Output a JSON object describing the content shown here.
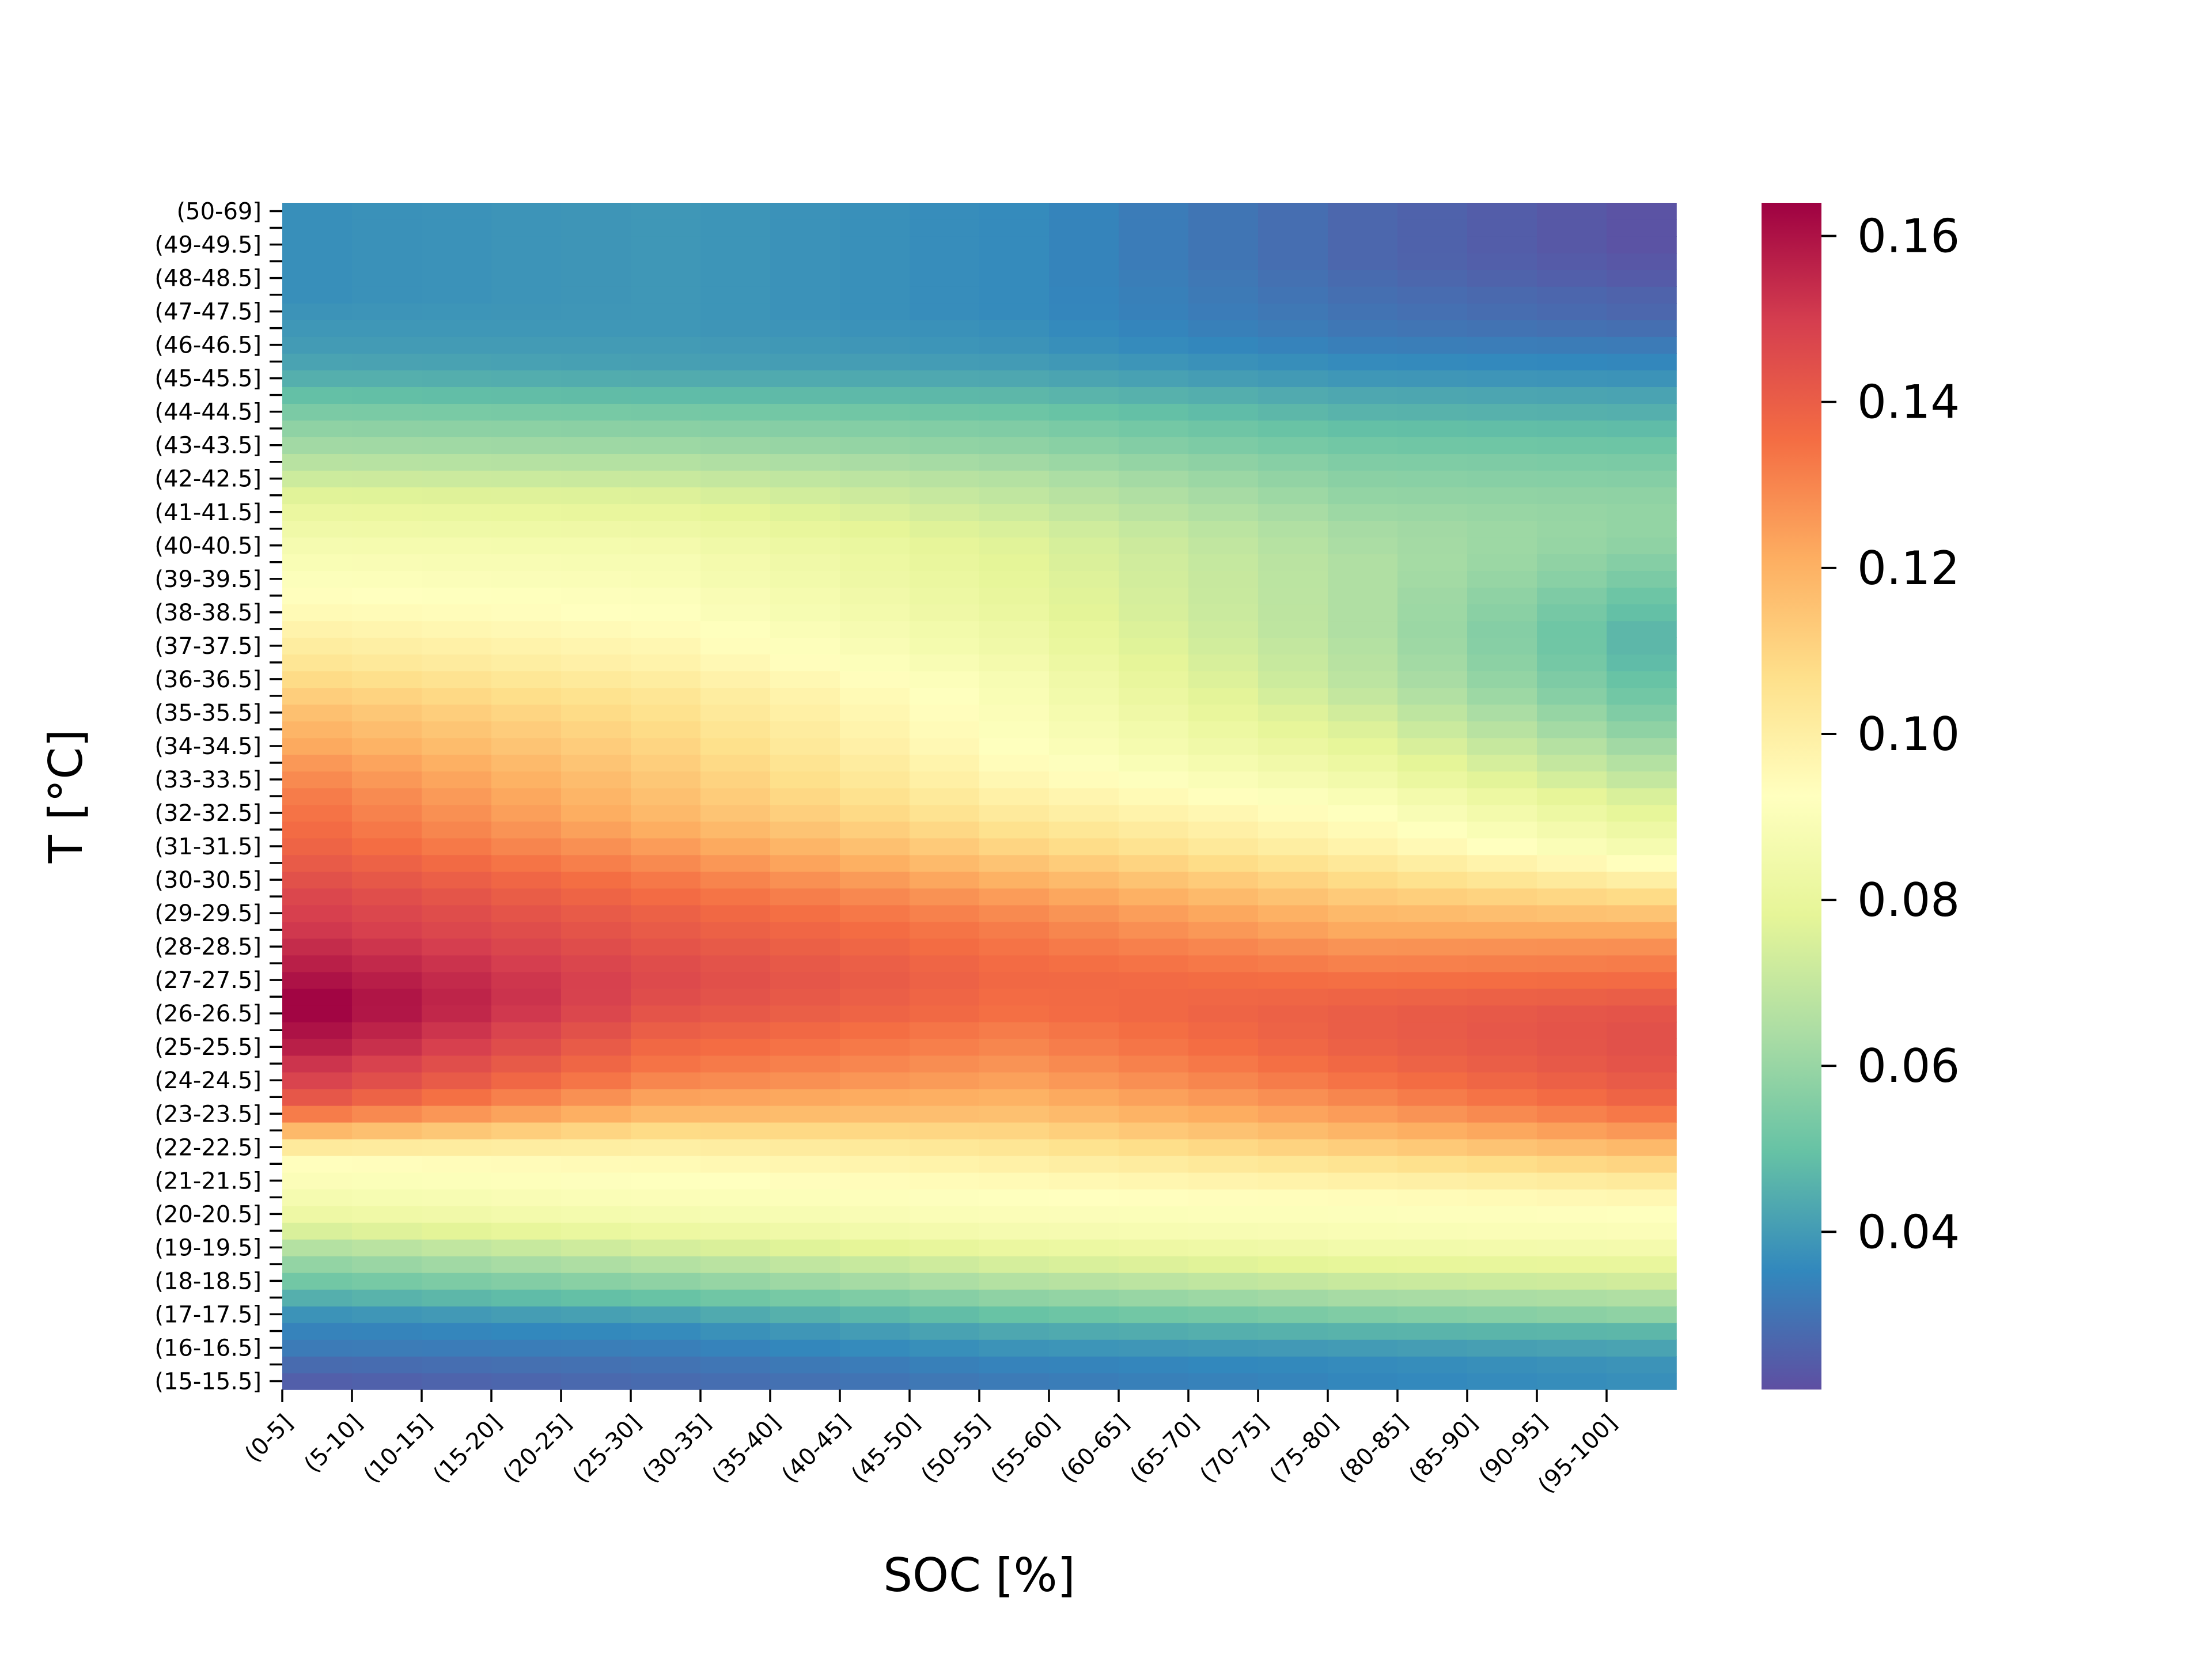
{
  "chart_data": {
    "type": "heatmap",
    "title": "",
    "xlabel": "SOC [%]",
    "ylabel": "T [°C]",
    "colormap": "Spectral_r",
    "colorbar": {
      "vmin": 0.021,
      "vmax": 0.164,
      "ticks": [
        "0.04",
        "0.06",
        "0.08",
        "0.10",
        "0.12",
        "0.14",
        "0.16"
      ],
      "tick_values": [
        0.04,
        0.06,
        0.08,
        0.1,
        0.12,
        0.14,
        0.16
      ]
    },
    "x_categories": [
      "(0-5]",
      "(5-10]",
      "(10-15]",
      "(15-20]",
      "(20-25]",
      "(25-30]",
      "(30-35]",
      "(35-40]",
      "(40-45]",
      "(45-50]",
      "(50-55]",
      "(55-60]",
      "(60-65]",
      "(65-70]",
      "(70-75]",
      "(75-80]",
      "(80-85]",
      "(85-90]",
      "(90-95]",
      "(95-100]"
    ],
    "y_tick_labels": [
      "(50-69]",
      "(49-49.5]",
      "(48-48.5]",
      "(47-47.5]",
      "(46-46.5]",
      "(45-45.5]",
      "(44-44.5]",
      "(43-43.5]",
      "(42-42.5]",
      "(41-41.5]",
      "(40-40.5]",
      "(39-39.5]",
      "(38-38.5]",
      "(37-37.5]",
      "(36-36.5]",
      "(35-35.5]",
      "(34-34.5]",
      "(33-33.5]",
      "(32-32.5]",
      "(31-31.5]",
      "(30-30.5]",
      "(29-29.5]",
      "(28-28.5]",
      "(27-27.5]",
      "(26-26.5]",
      "(25-25.5]",
      "(24-24.5]",
      "(23-23.5]",
      "(22-22.5]",
      "(21-21.5]",
      "(20-20.5]",
      "(19-19.5]",
      "(18-18.5]",
      "(17-17.5]",
      "(16-16.5]",
      "(15-15.5]"
    ],
    "y_row_count": 71,
    "grid": false,
    "legend": "colorbar-right",
    "profile_soc_anchors": [
      0,
      5,
      10,
      15,
      19
    ],
    "profile_rows": [
      {
        "T": 15.0,
        "v": [
          0.025,
          0.028,
          0.032,
          0.035,
          0.037
        ]
      },
      {
        "T": 15.5,
        "v": [
          0.028,
          0.03,
          0.034,
          0.036,
          0.038
        ]
      },
      {
        "T": 16.0,
        "v": [
          0.032,
          0.033,
          0.038,
          0.04,
          0.042
        ]
      },
      {
        "T": 16.5,
        "v": [
          0.034,
          0.036,
          0.043,
          0.046,
          0.047
        ]
      },
      {
        "T": 17.0,
        "v": [
          0.038,
          0.042,
          0.05,
          0.055,
          0.058
        ]
      },
      {
        "T": 17.5,
        "v": [
          0.045,
          0.05,
          0.058,
          0.063,
          0.065
        ]
      },
      {
        "T": 18.0,
        "v": [
          0.052,
          0.058,
          0.066,
          0.071,
          0.073
        ]
      },
      {
        "T": 18.5,
        "v": [
          0.059,
          0.066,
          0.074,
          0.079,
          0.08
        ]
      },
      {
        "T": 19.0,
        "v": [
          0.066,
          0.074,
          0.081,
          0.085,
          0.086
        ]
      },
      {
        "T": 19.5,
        "v": [
          0.075,
          0.082,
          0.087,
          0.089,
          0.09
        ]
      },
      {
        "T": 20.0,
        "v": [
          0.083,
          0.087,
          0.09,
          0.091,
          0.092
        ]
      },
      {
        "T": 20.5,
        "v": [
          0.087,
          0.09,
          0.092,
          0.094,
          0.096
        ]
      },
      {
        "T": 21.0,
        "v": [
          0.09,
          0.092,
          0.095,
          0.099,
          0.102
        ]
      },
      {
        "T": 21.5,
        "v": [
          0.093,
          0.095,
          0.099,
          0.105,
          0.11
        ]
      },
      {
        "T": 22.0,
        "v": [
          0.102,
          0.1,
          0.104,
          0.112,
          0.118
        ]
      },
      {
        "T": 22.5,
        "v": [
          0.118,
          0.108,
          0.11,
          0.119,
          0.126
        ]
      },
      {
        "T": 23.0,
        "v": [
          0.132,
          0.118,
          0.116,
          0.125,
          0.133
        ]
      },
      {
        "T": 23.5,
        "v": [
          0.142,
          0.124,
          0.12,
          0.13,
          0.138
        ]
      },
      {
        "T": 24.0,
        "v": [
          0.148,
          0.13,
          0.124,
          0.134,
          0.141
        ]
      },
      {
        "T": 24.5,
        "v": [
          0.152,
          0.134,
          0.127,
          0.137,
          0.143
        ]
      },
      {
        "T": 25.0,
        "v": [
          0.157,
          0.137,
          0.13,
          0.139,
          0.144
        ]
      },
      {
        "T": 25.5,
        "v": [
          0.16,
          0.14,
          0.132,
          0.14,
          0.144
        ]
      },
      {
        "T": 26.0,
        "v": [
          0.163,
          0.143,
          0.135,
          0.14,
          0.143
        ]
      },
      {
        "T": 26.5,
        "v": [
          0.163,
          0.145,
          0.136,
          0.138,
          0.14
        ]
      },
      {
        "T": 27.0,
        "v": [
          0.16,
          0.146,
          0.137,
          0.135,
          0.136
        ]
      },
      {
        "T": 27.5,
        "v": [
          0.157,
          0.145,
          0.136,
          0.131,
          0.132
        ]
      },
      {
        "T": 28.0,
        "v": [
          0.154,
          0.143,
          0.134,
          0.127,
          0.128
        ]
      },
      {
        "T": 28.5,
        "v": [
          0.151,
          0.141,
          0.132,
          0.122,
          0.122
        ]
      },
      {
        "T": 29.0,
        "v": [
          0.149,
          0.139,
          0.129,
          0.118,
          0.115
        ]
      },
      {
        "T": 29.5,
        "v": [
          0.147,
          0.136,
          0.125,
          0.113,
          0.108
        ]
      },
      {
        "T": 30.0,
        "v": [
          0.144,
          0.133,
          0.12,
          0.108,
          0.1
        ]
      },
      {
        "T": 30.5,
        "v": [
          0.141,
          0.129,
          0.115,
          0.103,
          0.093
        ]
      },
      {
        "T": 31.0,
        "v": [
          0.138,
          0.125,
          0.11,
          0.098,
          0.087
        ]
      },
      {
        "T": 31.5,
        "v": [
          0.136,
          0.121,
          0.106,
          0.095,
          0.083
        ]
      },
      {
        "T": 32.0,
        "v": [
          0.134,
          0.118,
          0.102,
          0.092,
          0.079
        ]
      },
      {
        "T": 32.5,
        "v": [
          0.132,
          0.116,
          0.099,
          0.089,
          0.075
        ]
      },
      {
        "T": 33.0,
        "v": [
          0.129,
          0.114,
          0.096,
          0.085,
          0.07
        ]
      },
      {
        "T": 33.5,
        "v": [
          0.126,
          0.112,
          0.094,
          0.082,
          0.066
        ]
      },
      {
        "T": 34.0,
        "v": [
          0.122,
          0.11,
          0.092,
          0.079,
          0.062
        ]
      },
      {
        "T": 34.5,
        "v": [
          0.119,
          0.108,
          0.091,
          0.076,
          0.058
        ]
      },
      {
        "T": 35.0,
        "v": [
          0.116,
          0.106,
          0.09,
          0.073,
          0.055
        ]
      },
      {
        "T": 35.5,
        "v": [
          0.112,
          0.104,
          0.089,
          0.07,
          0.052
        ]
      },
      {
        "T": 36.0,
        "v": [
          0.108,
          0.101,
          0.088,
          0.068,
          0.05
        ]
      },
      {
        "T": 36.5,
        "v": [
          0.104,
          0.098,
          0.086,
          0.067,
          0.048
        ]
      },
      {
        "T": 37.0,
        "v": [
          0.101,
          0.096,
          0.084,
          0.066,
          0.047
        ]
      },
      {
        "T": 37.5,
        "v": [
          0.098,
          0.094,
          0.083,
          0.065,
          0.047
        ]
      },
      {
        "T": 38.0,
        "v": [
          0.095,
          0.092,
          0.081,
          0.065,
          0.049
        ]
      },
      {
        "T": 38.5,
        "v": [
          0.093,
          0.091,
          0.08,
          0.065,
          0.051
        ]
      },
      {
        "T": 39.0,
        "v": [
          0.091,
          0.089,
          0.079,
          0.065,
          0.054
        ]
      },
      {
        "T": 39.5,
        "v": [
          0.089,
          0.088,
          0.078,
          0.065,
          0.056
        ]
      },
      {
        "T": 40.0,
        "v": [
          0.087,
          0.086,
          0.077,
          0.064,
          0.058
        ]
      },
      {
        "T": 40.5,
        "v": [
          0.084,
          0.083,
          0.075,
          0.063,
          0.059
        ]
      },
      {
        "T": 41.0,
        "v": [
          0.081,
          0.08,
          0.072,
          0.061,
          0.059
        ]
      },
      {
        "T": 41.5,
        "v": [
          0.077,
          0.076,
          0.069,
          0.059,
          0.058
        ]
      },
      {
        "T": 42.0,
        "v": [
          0.072,
          0.071,
          0.066,
          0.057,
          0.056
        ]
      },
      {
        "T": 42.5,
        "v": [
          0.067,
          0.066,
          0.062,
          0.055,
          0.054
        ]
      },
      {
        "T": 43.0,
        "v": [
          0.062,
          0.061,
          0.058,
          0.052,
          0.051
        ]
      },
      {
        "T": 43.5,
        "v": [
          0.058,
          0.057,
          0.055,
          0.049,
          0.048
        ]
      },
      {
        "T": 44.0,
        "v": [
          0.054,
          0.053,
          0.051,
          0.046,
          0.045
        ]
      },
      {
        "T": 44.5,
        "v": [
          0.049,
          0.048,
          0.047,
          0.043,
          0.042
        ]
      },
      {
        "T": 45.0,
        "v": [
          0.045,
          0.044,
          0.043,
          0.039,
          0.038
        ]
      },
      {
        "T": 45.5,
        "v": [
          0.042,
          0.041,
          0.04,
          0.036,
          0.035
        ]
      },
      {
        "T": 46.0,
        "v": [
          0.04,
          0.04,
          0.038,
          0.033,
          0.032
        ]
      },
      {
        "T": 46.5,
        "v": [
          0.039,
          0.039,
          0.037,
          0.031,
          0.029
        ]
      },
      {
        "T": 47.0,
        "v": [
          0.038,
          0.039,
          0.036,
          0.03,
          0.027
        ]
      },
      {
        "T": 47.5,
        "v": [
          0.037,
          0.039,
          0.036,
          0.029,
          0.026
        ]
      },
      {
        "T": 48.0,
        "v": [
          0.037,
          0.039,
          0.036,
          0.028,
          0.024
        ]
      },
      {
        "T": 48.5,
        "v": [
          0.037,
          0.039,
          0.036,
          0.027,
          0.023
        ]
      },
      {
        "T": 49.0,
        "v": [
          0.037,
          0.039,
          0.036,
          0.027,
          0.022
        ]
      },
      {
        "T": 49.5,
        "v": [
          0.037,
          0.039,
          0.036,
          0.027,
          0.022
        ]
      },
      {
        "T": 50.0,
        "v": [
          0.037,
          0.039,
          0.036,
          0.027,
          0.022
        ]
      }
    ]
  }
}
